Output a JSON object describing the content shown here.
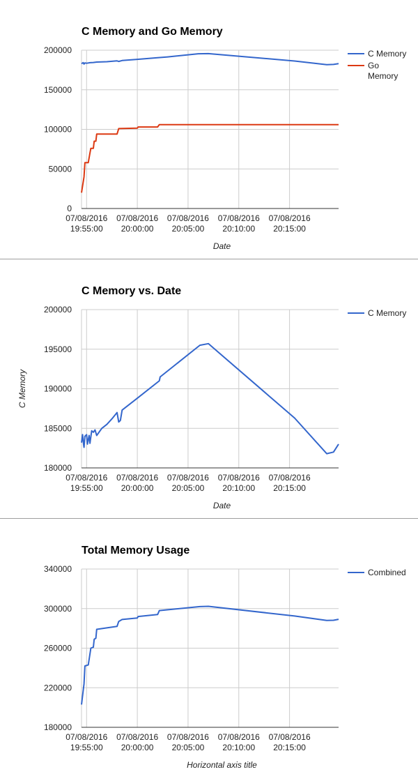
{
  "chart_data": [
    {
      "type": "line",
      "title": "C Memory and Go Memory",
      "xlabel": "Date",
      "ylabel": "",
      "ylim": [
        0,
        200000
      ],
      "yticks": [
        "200000",
        "150000",
        "100000",
        "50000",
        "0"
      ],
      "ytick_values": [
        200000,
        150000,
        100000,
        50000,
        0
      ],
      "xlim": [
        "07/08/2016 19:54:30",
        "07/08/2016 20:19:50"
      ],
      "xticks": [
        {
          "date": "07/08/2016",
          "time": "19:55:00",
          "t": "19:55:00"
        },
        {
          "date": "07/08/2016",
          "time": "20:00:00",
          "t": "20:00:00"
        },
        {
          "date": "07/08/2016",
          "time": "20:05:00",
          "t": "20:05:00"
        },
        {
          "date": "07/08/2016",
          "time": "20:10:00",
          "t": "20:10:00"
        },
        {
          "date": "07/08/2016",
          "time": "20:15:00",
          "t": "20:15:00"
        }
      ],
      "legend_position": "right",
      "grid": true,
      "series": [
        {
          "name": "C Memory",
          "color": "#3366cc",
          "points": [
            [
              "19:54:30",
              183000
            ],
            [
              "19:54:40",
              184300
            ],
            [
              "19:54:45",
              182500
            ],
            [
              "19:54:50",
              184000
            ],
            [
              "19:55:00",
              183500
            ],
            [
              "19:55:20",
              184200
            ],
            [
              "19:55:40",
              184500
            ],
            [
              "19:56:00",
              185000
            ],
            [
              "19:57:00",
              185500
            ],
            [
              "19:58:00",
              186500
            ],
            [
              "19:58:10",
              185800
            ],
            [
              "19:58:30",
              187000
            ],
            [
              "20:00:00",
              188500
            ],
            [
              "20:02:00",
              190500
            ],
            [
              "20:03:00",
              191500
            ],
            [
              "20:06:00",
              195500
            ],
            [
              "20:07:00",
              195700
            ],
            [
              "20:15:30",
              186300
            ],
            [
              "20:18:40",
              181800
            ],
            [
              "20:19:20",
              182000
            ],
            [
              "20:19:50",
              183000
            ]
          ]
        },
        {
          "name": "Go Memory",
          "color": "#dc3912",
          "points": [
            [
              "19:54:30",
              20000
            ],
            [
              "19:54:45",
              40000
            ],
            [
              "19:54:50",
              58000
            ],
            [
              "19:55:10",
              58000
            ],
            [
              "19:55:20",
              70000
            ],
            [
              "19:55:25",
              76000
            ],
            [
              "19:55:40",
              76000
            ],
            [
              "19:55:45",
              85000
            ],
            [
              "19:55:55",
              85000
            ],
            [
              "19:56:00",
              94000
            ],
            [
              "19:58:00",
              94000
            ],
            [
              "19:58:10",
              101000
            ],
            [
              "20:00:00",
              101500
            ],
            [
              "20:00:05",
              103000
            ],
            [
              "20:02:00",
              103000
            ],
            [
              "20:02:10",
              106000
            ],
            [
              "20:19:50",
              106000
            ]
          ]
        }
      ]
    },
    {
      "type": "line",
      "title": "C Memory vs. Date",
      "xlabel": "Date",
      "ylabel": "C Memory",
      "ylim": [
        180000,
        200000
      ],
      "yticks": [
        "200000",
        "195000",
        "190000",
        "185000",
        "180000"
      ],
      "ytick_values": [
        200000,
        195000,
        190000,
        185000,
        180000
      ],
      "xlim": [
        "07/08/2016 19:54:30",
        "07/08/2016 20:19:50"
      ],
      "xticks": [
        {
          "date": "07/08/2016",
          "time": "19:55:00",
          "t": "19:55:00"
        },
        {
          "date": "07/08/2016",
          "time": "20:00:00",
          "t": "20:00:00"
        },
        {
          "date": "07/08/2016",
          "time": "20:05:00",
          "t": "20:05:00"
        },
        {
          "date": "07/08/2016",
          "time": "20:10:00",
          "t": "20:10:00"
        },
        {
          "date": "07/08/2016",
          "time": "20:15:00",
          "t": "20:15:00"
        }
      ],
      "legend_position": "right",
      "grid": true,
      "series": [
        {
          "name": "C Memory",
          "color": "#3366cc",
          "points": [
            [
              "19:54:30",
              183200
            ],
            [
              "19:54:36",
              184200
            ],
            [
              "19:54:42",
              183000
            ],
            [
              "19:54:45",
              182600
            ],
            [
              "19:54:50",
              184000
            ],
            [
              "19:55:00",
              184200
            ],
            [
              "19:55:05",
              183000
            ],
            [
              "19:55:15",
              184100
            ],
            [
              "19:55:20",
              183100
            ],
            [
              "19:55:30",
              184700
            ],
            [
              "19:55:40",
              184500
            ],
            [
              "19:55:50",
              184800
            ],
            [
              "19:56:00",
              184100
            ],
            [
              "19:56:30",
              185000
            ],
            [
              "19:57:00",
              185500
            ],
            [
              "19:57:30",
              186200
            ],
            [
              "19:58:00",
              187000
            ],
            [
              "19:58:10",
              185800
            ],
            [
              "19:58:20",
              186000
            ],
            [
              "19:58:30",
              187300
            ],
            [
              "20:00:00",
              188800
            ],
            [
              "20:02:10",
              191000
            ],
            [
              "20:02:15",
              191500
            ],
            [
              "20:06:10",
              195500
            ],
            [
              "20:07:00",
              195700
            ],
            [
              "20:15:30",
              186300
            ],
            [
              "20:18:40",
              181800
            ],
            [
              "20:19:20",
              182000
            ],
            [
              "20:19:50",
              183000
            ]
          ]
        }
      ]
    },
    {
      "type": "line",
      "title": "Total Memory Usage",
      "xlabel": "Horizontal axis title",
      "ylabel": "",
      "ylim": [
        180000,
        340000
      ],
      "yticks": [
        "340000",
        "300000",
        "260000",
        "220000",
        "180000"
      ],
      "ytick_values": [
        340000,
        300000,
        260000,
        220000,
        180000
      ],
      "xlim": [
        "07/08/2016 19:54:30",
        "07/08/2016 20:19:50"
      ],
      "xticks": [
        {
          "date": "07/08/2016",
          "time": "19:55:00",
          "t": "19:55:00"
        },
        {
          "date": "07/08/2016",
          "time": "20:00:00",
          "t": "20:00:00"
        },
        {
          "date": "07/08/2016",
          "time": "20:05:00",
          "t": "20:05:00"
        },
        {
          "date": "07/08/2016",
          "time": "20:10:00",
          "t": "20:10:00"
        },
        {
          "date": "07/08/2016",
          "time": "20:15:00",
          "t": "20:15:00"
        }
      ],
      "legend_position": "right",
      "grid": true,
      "series": [
        {
          "name": "Combined",
          "color": "#3366cc",
          "points": [
            [
              "19:54:30",
              203000
            ],
            [
              "19:54:45",
              224000
            ],
            [
              "19:54:50",
              242000
            ],
            [
              "19:55:10",
              243000
            ],
            [
              "19:55:20",
              254000
            ],
            [
              "19:55:25",
              260000
            ],
            [
              "19:55:40",
              261000
            ],
            [
              "19:55:45",
              269000
            ],
            [
              "19:55:55",
              270000
            ],
            [
              "19:56:00",
              279000
            ],
            [
              "19:58:00",
              282000
            ],
            [
              "19:58:10",
              287000
            ],
            [
              "19:58:30",
              289000
            ],
            [
              "20:00:00",
              290500
            ],
            [
              "20:00:05",
              292000
            ],
            [
              "20:02:00",
              294000
            ],
            [
              "20:02:10",
              298000
            ],
            [
              "20:06:10",
              302000
            ],
            [
              "20:07:00",
              302300
            ],
            [
              "20:15:30",
              292500
            ],
            [
              "20:18:40",
              288000
            ],
            [
              "20:19:20",
              288200
            ],
            [
              "20:19:50",
              289200
            ]
          ]
        }
      ]
    }
  ]
}
